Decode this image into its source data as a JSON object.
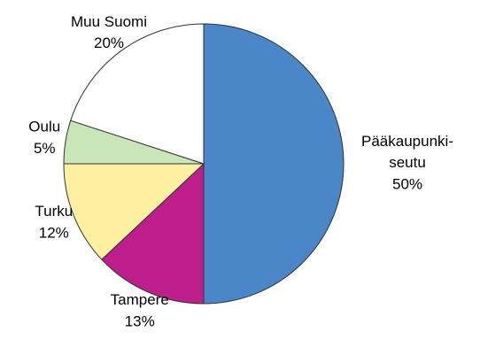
{
  "chart_data": {
    "type": "pie",
    "categories": [
      "Pääkaupunki-\nseutu",
      "Tampere",
      "Turku",
      "Oulu",
      "Muu Suomi"
    ],
    "values": [
      50,
      13,
      12,
      5,
      20
    ],
    "value_labels": [
      "50%",
      "13%",
      "12%",
      "5%",
      "20%"
    ],
    "colors": [
      "#4a86c8",
      "#be1e8c",
      "#fdf0a0",
      "#c8e6b8",
      "#ffffff"
    ]
  }
}
